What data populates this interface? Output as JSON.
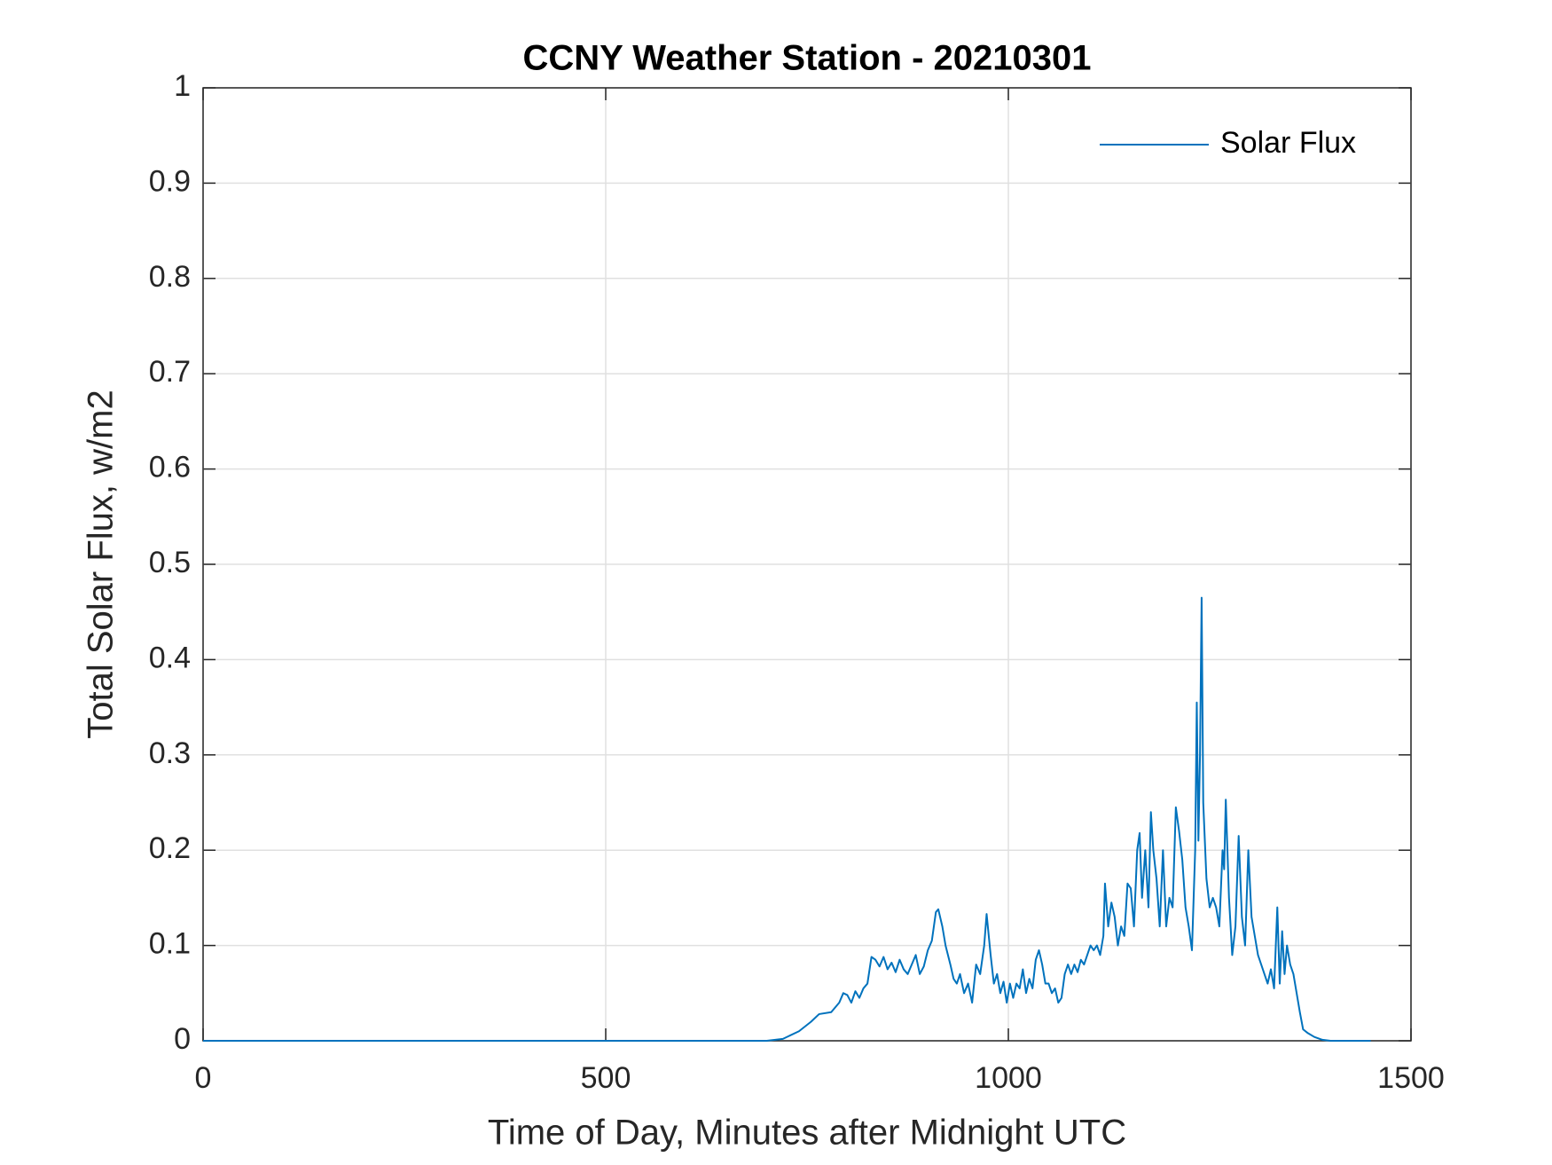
{
  "chart_data": {
    "type": "line",
    "title": "CCNY Weather Station - 20210301",
    "x_label": "Time of Day, Minutes after Midnight UTC",
    "y_label": "Total Solar Flux, w/m2",
    "xlim": [
      0,
      1500
    ],
    "xticks": [
      0,
      500,
      1000,
      1500
    ],
    "ylim": [
      0,
      1
    ],
    "yticks": [
      0,
      0.1,
      0.2,
      0.3,
      0.4,
      0.5,
      0.6,
      0.7,
      0.8,
      0.9,
      1
    ],
    "grid": true,
    "legend": "northeast",
    "x": [
      0,
      700,
      720,
      740,
      755,
      765,
      780,
      790,
      795,
      800,
      805,
      810,
      815,
      820,
      825,
      830,
      835,
      840,
      845,
      850,
      855,
      860,
      865,
      870,
      875,
      880,
      885,
      890,
      895,
      900,
      905,
      910,
      913,
      918,
      922,
      928,
      932,
      936,
      940,
      945,
      950,
      955,
      960,
      965,
      970,
      973,
      978,
      982,
      986,
      990,
      994,
      998,
      1002,
      1006,
      1010,
      1014,
      1018,
      1022,
      1026,
      1030,
      1034,
      1038,
      1042,
      1046,
      1050,
      1054,
      1058,
      1062,
      1066,
      1070,
      1074,
      1078,
      1082,
      1086,
      1090,
      1094,
      1098,
      1102,
      1106,
      1110,
      1114,
      1118,
      1120,
      1124,
      1128,
      1132,
      1136,
      1140,
      1144,
      1148,
      1152,
      1156,
      1160,
      1163,
      1166,
      1170,
      1174,
      1177,
      1180,
      1184,
      1188,
      1192,
      1196,
      1200,
      1204,
      1208,
      1212,
      1216,
      1220,
      1224,
      1228,
      1232,
      1234,
      1236,
      1238,
      1240,
      1242,
      1246,
      1250,
      1254,
      1258,
      1262,
      1266,
      1268,
      1270,
      1274,
      1278,
      1282,
      1286,
      1290,
      1294,
      1298,
      1302,
      1306,
      1310,
      1314,
      1318,
      1322,
      1326,
      1330,
      1334,
      1337,
      1340,
      1343,
      1346,
      1350,
      1354,
      1358,
      1362,
      1366,
      1372,
      1380,
      1390,
      1400,
      1450
    ],
    "series": [
      {
        "name": "Solar Flux",
        "color": "#0072bd",
        "values": [
          0,
          0,
          0.002,
          0.01,
          0.02,
          0.028,
          0.03,
          0.04,
          0.05,
          0.048,
          0.04,
          0.052,
          0.045,
          0.055,
          0.06,
          0.088,
          0.085,
          0.078,
          0.088,
          0.075,
          0.082,
          0.072,
          0.085,
          0.075,
          0.07,
          0.08,
          0.09,
          0.07,
          0.078,
          0.095,
          0.105,
          0.135,
          0.138,
          0.12,
          0.1,
          0.08,
          0.065,
          0.06,
          0.07,
          0.05,
          0.06,
          0.04,
          0.08,
          0.07,
          0.1,
          0.133,
          0.09,
          0.06,
          0.07,
          0.05,
          0.062,
          0.04,
          0.06,
          0.045,
          0.06,
          0.055,
          0.075,
          0.05,
          0.065,
          0.055,
          0.085,
          0.095,
          0.08,
          0.06,
          0.06,
          0.05,
          0.055,
          0.04,
          0.045,
          0.07,
          0.08,
          0.07,
          0.08,
          0.072,
          0.085,
          0.08,
          0.09,
          0.1,
          0.095,
          0.1,
          0.09,
          0.11,
          0.165,
          0.12,
          0.145,
          0.13,
          0.1,
          0.12,
          0.11,
          0.165,
          0.16,
          0.12,
          0.2,
          0.218,
          0.15,
          0.2,
          0.14,
          0.24,
          0.2,
          0.17,
          0.12,
          0.2,
          0.12,
          0.15,
          0.14,
          0.245,
          0.22,
          0.19,
          0.14,
          0.12,
          0.095,
          0.2,
          0.355,
          0.21,
          0.3,
          0.465,
          0.25,
          0.17,
          0.14,
          0.15,
          0.14,
          0.12,
          0.2,
          0.18,
          0.253,
          0.15,
          0.09,
          0.12,
          0.215,
          0.13,
          0.1,
          0.2,
          0.13,
          0.11,
          0.09,
          0.08,
          0.07,
          0.06,
          0.075,
          0.055,
          0.14,
          0.06,
          0.115,
          0.07,
          0.1,
          0.08,
          0.07,
          0.05,
          0.03,
          0.012,
          0.008,
          0.004,
          0.001,
          0,
          0
        ]
      }
    ]
  }
}
